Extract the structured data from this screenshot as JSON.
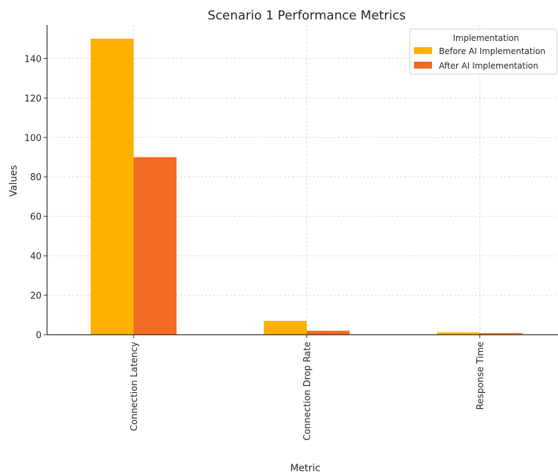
{
  "chart_data": {
    "type": "bar",
    "title": "Scenario 1 Performance Metrics",
    "xlabel": "Metric",
    "ylabel": "Values",
    "categories": [
      "Connection Latency",
      "Connection Drop Rate",
      "Response Time"
    ],
    "series": [
      {
        "name": "Before AI Implementation",
        "values": [
          150,
          7,
          1.2
        ],
        "color": "#FFB000"
      },
      {
        "name": "After AI Implementation",
        "values": [
          90,
          2,
          0.8
        ],
        "color": "#F26B21"
      }
    ],
    "ylim": [
      0,
      157
    ],
    "yticks": [
      0,
      20,
      40,
      60,
      80,
      100,
      120,
      140
    ],
    "legend": {
      "title": "Implementation",
      "placement": "top-right"
    },
    "grid": true
  }
}
